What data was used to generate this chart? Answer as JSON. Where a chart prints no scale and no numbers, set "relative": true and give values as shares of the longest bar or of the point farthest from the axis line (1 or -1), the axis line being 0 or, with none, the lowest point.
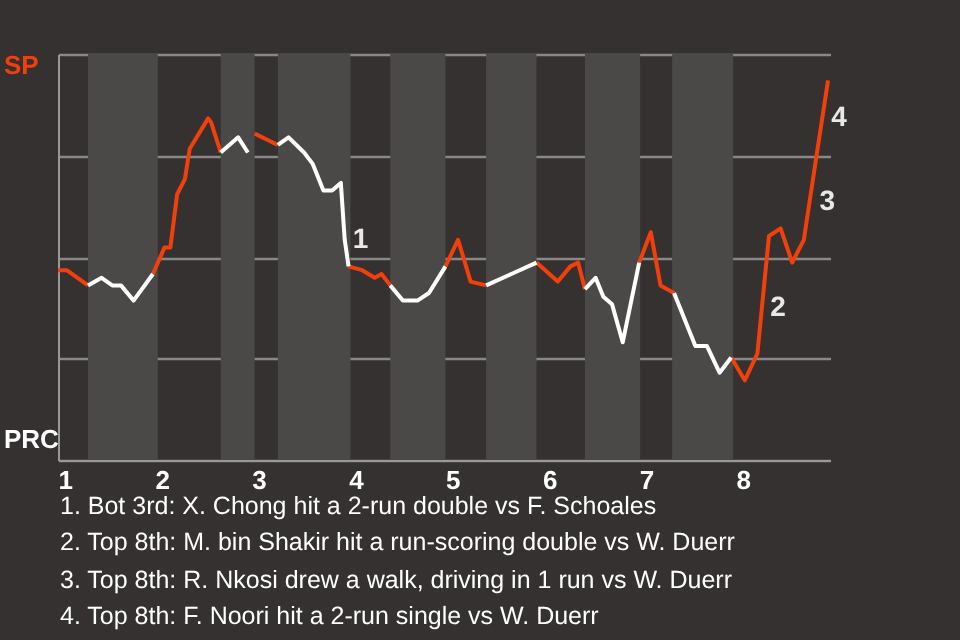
{
  "chart_data": {
    "type": "line",
    "relative": true,
    "grid": "y",
    "x": [
      0.93,
      1.02,
      1.24,
      1.38,
      1.49,
      1.58,
      1.71,
      1.91,
      2.03,
      2.09,
      2.16,
      2.24,
      2.29,
      2.48,
      2.51,
      2.61,
      2.79,
      2.89,
      2.96,
      3.2,
      3.31,
      3.47,
      3.56,
      3.67,
      3.76,
      3.85,
      3.89,
      3.93,
      4.07,
      4.2,
      4.27,
      4.36,
      4.49,
      4.64,
      4.76,
      4.93,
      5.06,
      5.19,
      5.35,
      5.61,
      5.87,
      6.09,
      6.22,
      6.3,
      6.37,
      6.48,
      6.56,
      6.65,
      6.76,
      6.93,
      7.05,
      7.15,
      7.29,
      7.51,
      7.63,
      7.76,
      7.88,
      8.02,
      8.15,
      8.27,
      8.39,
      8.51,
      8.63,
      8.76,
      8.88
    ],
    "xlim": [
      0.93,
      8.9
    ],
    "xticks": [
      1,
      2,
      3,
      4,
      5,
      6,
      7,
      8
    ],
    "series": [
      {
        "name": "SP",
        "color": "#f2400d",
        "values": [
          0.5,
          0.5,
          0.46,
          null,
          null,
          null,
          null,
          0.49,
          0.56,
          0.56,
          0.7,
          0.74,
          0.82,
          0.9,
          0.89,
          0.81,
          null,
          null,
          0.86,
          0.83,
          null,
          null,
          null,
          null,
          null,
          null,
          null,
          0.51,
          0.5,
          0.48,
          0.49,
          0.46,
          null,
          null,
          null,
          0.51,
          0.58,
          0.47,
          0.46,
          null,
          0.52,
          0.47,
          0.51,
          0.52,
          0.45,
          null,
          null,
          null,
          null,
          0.52,
          0.6,
          0.46,
          0.44,
          null,
          null,
          null,
          0.27,
          0.21,
          0.28,
          0.59,
          0.61,
          0.52,
          0.58,
          0.8,
          1.0
        ]
      },
      {
        "name": "PRC",
        "color": "#ffffff",
        "values": [
          null,
          null,
          0.46,
          0.48,
          0.46,
          0.46,
          0.42,
          0.49,
          null,
          null,
          null,
          null,
          null,
          null,
          null,
          0.81,
          0.85,
          0.81,
          null,
          0.83,
          0.85,
          0.81,
          0.78,
          0.71,
          0.71,
          0.73,
          0.58,
          0.51,
          null,
          null,
          null,
          0.46,
          0.42,
          0.42,
          0.44,
          0.51,
          null,
          null,
          0.46,
          0.49,
          0.52,
          null,
          null,
          null,
          0.45,
          0.48,
          0.43,
          0.41,
          0.31,
          0.52,
          null,
          null,
          0.44,
          0.3,
          0.3,
          0.23,
          0.27,
          null,
          null,
          null,
          null,
          null,
          null,
          null,
          null
        ]
      }
    ],
    "bands": [
      {
        "axis": "x",
        "from": 1.24,
        "to": 1.96,
        "color": "#4b4947"
      },
      {
        "axis": "x",
        "from": 2.61,
        "to": 2.96,
        "color": "#4b4947"
      },
      {
        "axis": "x",
        "from": 3.2,
        "to": 3.95,
        "color": "#4b4947"
      },
      {
        "axis": "x",
        "from": 4.36,
        "to": 4.93,
        "color": "#4b4947"
      },
      {
        "axis": "x",
        "from": 5.35,
        "to": 5.87,
        "color": "#4b4947"
      },
      {
        "axis": "x",
        "from": 6.37,
        "to": 6.94,
        "color": "#4b4947"
      },
      {
        "axis": "x",
        "from": 7.27,
        "to": 7.9,
        "color": "#4b4947"
      }
    ],
    "annotations": [
      {
        "text": "1",
        "x": 3.89,
        "y": 0.58
      },
      {
        "text": "2",
        "x": 8.2,
        "y": 0.4
      },
      {
        "text": "3",
        "x": 8.71,
        "y": 0.68
      },
      {
        "text": "4",
        "x": 8.83,
        "y": 0.9
      },
      "1. Bot 3rd: X. Chong hit a 2-run double vs F. Schoales",
      "2. Top 8th: M. bin Shakir hit a run-scoring double vs W. Duerr",
      "3. Top 8th: R. Nkosi drew a walk, driving in 1 run vs W. Duerr",
      "4. Top 8th: F. Noori hit a 2-run single vs W. Duerr"
    ]
  }
}
